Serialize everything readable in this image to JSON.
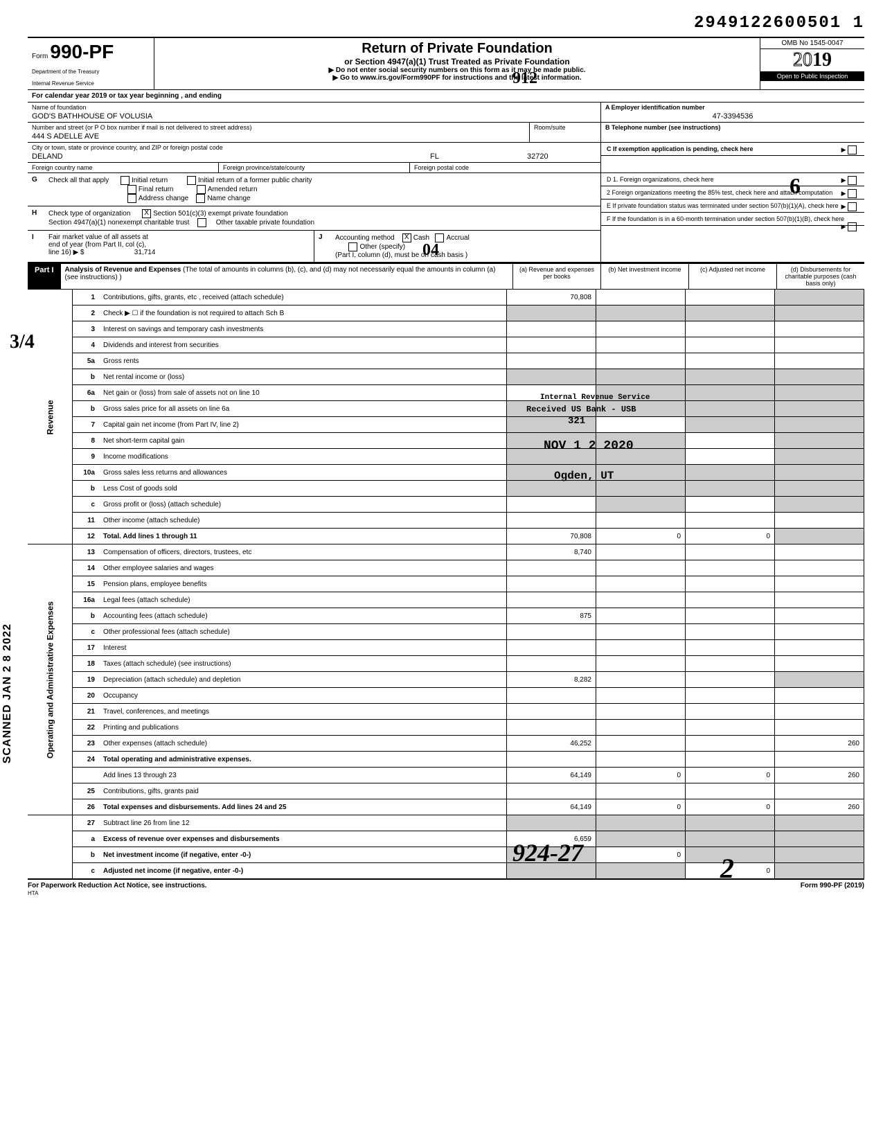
{
  "doc_id": "2949122600501 1",
  "form": {
    "prefix": "Form",
    "number": "990-PF",
    "dept1": "Department of the Treasury",
    "dept2": "Internal Revenue Service"
  },
  "title": {
    "main": "Return of Private Foundation",
    "sub": "or Section 4947(a)(1) Trust Treated as Private Foundation",
    "note1": "▶   Do not enter social security numbers on this form as it may be made public.",
    "note2": "▶   Go to www.irs.gov/Form990PF for instructions and the latest information."
  },
  "omb": "OMB No  1545-0047",
  "year": "2019",
  "year_outline": "20",
  "year_bold": "19",
  "inspect": "Open to Public Inspection",
  "cal_year": "For calendar year 2019 or tax year beginning                                                                    , and ending",
  "org": {
    "name_label": "Name of foundation",
    "name": "GOD'S BATHHOUSE OF VOLUSIA",
    "addr_label": "Number and street (or P O  box number if mail is not delivered to street address)",
    "room_label": "Room/suite",
    "addr": "444 S ADELLE AVE",
    "city_label": "City or town, state or province  country, and ZIP or foreign postal code",
    "city": "DELAND",
    "state": "FL",
    "zip": "32720",
    "fc_label": "Foreign country name",
    "fp_label": "Foreign province/state/county",
    "fpc_label": "Foreign postal code"
  },
  "ein": {
    "label": "A  Employer identification number",
    "value": "47-3394536"
  },
  "tel": {
    "label": "B  Telephone number (see instructions)"
  },
  "c_label": "C   If exemption application is pending, check here",
  "g": {
    "label": "G",
    "text": "Check all that apply",
    "initial": "Initial return",
    "initial_former": "Initial return of a former public charity",
    "final": "Final return",
    "amended": "Amended return",
    "addr_change": "Address change",
    "name_change": "Name change"
  },
  "h": {
    "label": "H",
    "text": "Check type of organization",
    "s501": "Section 501(c)(3) exempt private foundation",
    "s4947": "Section 4947(a)(1) nonexempt charitable trust",
    "other_tax": "Other taxable private foundation"
  },
  "i": {
    "label": "I",
    "text1": "Fair market value of all assets at",
    "text2": "end of year (from Part II, col (c),",
    "text3": "line 16) ▶ $",
    "value": "31,714"
  },
  "j": {
    "label": "J",
    "text": "Accounting method",
    "cash": "Cash",
    "accrual": "Accrual",
    "other": "Other (specify)",
    "note": "(Part I, column (d), must be on cash basis )"
  },
  "d1": "D  1. Foreign organizations, check here",
  "d2": "2  Foreign organizations meeting the 85% test, check here and attach computation",
  "e": "E   If private foundation status was terminated under section 507(b)(1)(A), check here",
  "f": "F   If the foundation is in a 60-month termination under section 507(b)(1)(B), check here",
  "part1": {
    "tab": "Part I",
    "desc": "Analysis of Revenue and Expenses (The total of amounts in columns (b), (c), and (d) may not necessarily equal the amounts in column (a) (see instructions) )",
    "col_a": "(a)  Revenue and expenses per books",
    "col_b": "(b)  Net investment income",
    "col_c": "(c)  Adjusted net income",
    "col_d": "(d)  Disbursements for charitable purposes (cash basis only)"
  },
  "side_rev": "Revenue",
  "side_exp": "Operating and Administrative Expenses",
  "rows": [
    {
      "n": "1",
      "d": "Contributions, gifts, grants, etc , received (attach schedule)",
      "a": "70,808",
      "shade_d": true
    },
    {
      "n": "2",
      "d": "Check ▶ ☐  if the foundation is not required to attach Sch  B",
      "shade_all": true
    },
    {
      "n": "3",
      "d": "Interest on savings and temporary cash investments"
    },
    {
      "n": "4",
      "d": "Dividends and interest from securities"
    },
    {
      "n": "5a",
      "d": "Gross rents"
    },
    {
      "n": "b",
      "d": "Net rental income or (loss)",
      "shade_all": true
    },
    {
      "n": "6a",
      "d": "Net gain or (loss) from sale of assets not on line 10",
      "shade_bcd": true
    },
    {
      "n": "b",
      "d": "Gross sales price for all assets on line 6a",
      "shade_all": true
    },
    {
      "n": "7",
      "d": "Capital gain net income (from Part IV, line 2)",
      "shade_a": true,
      "shade_cd": true
    },
    {
      "n": "8",
      "d": "Net short-term capital gain",
      "shade_ab": true,
      "shade_d": true
    },
    {
      "n": "9",
      "d": "Income modifications",
      "shade_ab": true,
      "shade_d": true
    },
    {
      "n": "10a",
      "d": "Gross sales less returns and allowances",
      "shade_all": true
    },
    {
      "n": "b",
      "d": "Less  Cost of goods sold",
      "shade_all": true
    },
    {
      "n": "c",
      "d": "Gross profit or (loss) (attach schedule)",
      "shade_b": true,
      "shade_d": true
    },
    {
      "n": "11",
      "d": "Other income (attach schedule)"
    },
    {
      "n": "12",
      "d": "Total.  Add lines 1 through 11",
      "bold": true,
      "a": "70,808",
      "b": "0",
      "c": "0",
      "shade_d": true
    },
    {
      "n": "13",
      "d": "Compensation of officers, directors, trustees, etc",
      "a": "8,740"
    },
    {
      "n": "14",
      "d": "Other employee salaries and wages"
    },
    {
      "n": "15",
      "d": "Pension plans, employee benefits"
    },
    {
      "n": "16a",
      "d": "Legal fees (attach schedule)"
    },
    {
      "n": "b",
      "d": "Accounting fees (attach schedule)",
      "a": "875"
    },
    {
      "n": "c",
      "d": "Other professional fees (attach schedule)"
    },
    {
      "n": "17",
      "d": "Interest"
    },
    {
      "n": "18",
      "d": "Taxes (attach schedule) (see instructions)"
    },
    {
      "n": "19",
      "d": "Depreciation (attach schedule) and depletion",
      "a": "8,282",
      "shade_d": true
    },
    {
      "n": "20",
      "d": "Occupancy"
    },
    {
      "n": "21",
      "d": "Travel, conferences, and meetings"
    },
    {
      "n": "22",
      "d": "Printing and publications"
    },
    {
      "n": "23",
      "d": "Other expenses (attach schedule)",
      "a": "46,252",
      "d_val": "260"
    },
    {
      "n": "24",
      "d": "Total operating and administrative expenses.",
      "bold": true
    },
    {
      "n": "",
      "d": "Add lines 13 through 23",
      "a": "64,149",
      "b": "0",
      "c": "0",
      "d_val": "260"
    },
    {
      "n": "25",
      "d": "Contributions, gifts, grants paid"
    },
    {
      "n": "26",
      "d": "Total expenses and disbursements. Add lines 24 and 25",
      "bold": true,
      "a": "64,149",
      "b": "0",
      "c": "0",
      "d_val": "260"
    },
    {
      "n": "27",
      "d": "Subtract line 26 from line 12",
      "shade_all": true
    },
    {
      "n": "a",
      "d": "Excess of revenue over expenses and disbursements",
      "bold": true,
      "a": "6,659",
      "shade_bcd": true
    },
    {
      "n": "b",
      "d": "Net investment income (if negative, enter -0-)",
      "bold": true,
      "shade_a": true,
      "b": "0",
      "shade_cd": true
    },
    {
      "n": "c",
      "d": "Adjusted net income (if negative, enter -0-)",
      "bold": true,
      "shade_ab": true,
      "c": "0",
      "shade_d": true
    }
  ],
  "footer": {
    "left": "For Paperwork Reduction Act Notice, see instructions.",
    "hta": "HTA",
    "right": "Form 990-PF (2019)"
  },
  "stamps": {
    "received1": "Internal Revenue Service",
    "received2": "Received   US Bank - USB",
    "received3": "321",
    "received4": "NOV  1 2 2020",
    "received5": "Ogden, UT"
  },
  "hand": {
    "h1": "912",
    "h2": "04",
    "h3": "924-27",
    "h4": "6",
    "h5": "2",
    "h6": "3/4"
  },
  "side_stamp": "SCANNED  JAN 2 8 2022"
}
